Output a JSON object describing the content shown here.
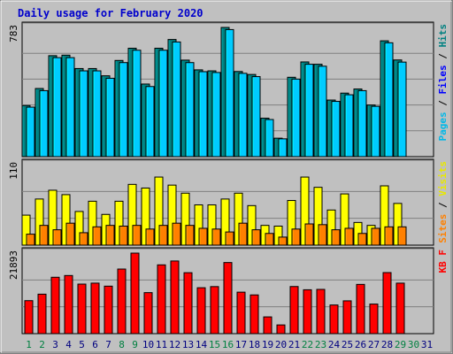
{
  "chart_data": {
    "type": "bar",
    "title": "Daily usage for February 2020",
    "legend_placement": "right",
    "x": {
      "labels": [
        "1",
        "2",
        "3",
        "4",
        "5",
        "6",
        "7",
        "8",
        "9",
        "10",
        "11",
        "12",
        "13",
        "14",
        "15",
        "16",
        "17",
        "18",
        "19",
        "20",
        "21",
        "22",
        "23",
        "24",
        "25",
        "26",
        "27",
        "28",
        "29",
        "30",
        "31"
      ],
      "weekend_days": [
        "1",
        "2",
        "8",
        "9",
        "15",
        "16",
        "22",
        "23",
        "29",
        "30"
      ],
      "weekend_color": "#008040",
      "weekday_color": "#000080"
    },
    "panels": [
      {
        "id": "pages-files-hits",
        "ymax_label": "783",
        "ymax": 783,
        "gridlines": 5,
        "legend": [
          {
            "text": "Pages",
            "color": "#00b8e8"
          },
          {
            "text": " / ",
            "color": "#000000"
          },
          {
            "text": "Files",
            "color": "#0000ff"
          },
          {
            "text": " / ",
            "color": "#000000"
          },
          {
            "text": "Hits",
            "color": "#008080"
          }
        ],
        "series": [
          {
            "name": "Hits",
            "color": "#008080",
            "values": [
              310,
              413,
              612,
              615,
              534,
              534,
              490,
              583,
              657,
              440,
              657,
              710,
              585,
              526,
              520,
              783,
              516,
              498,
              233,
              112,
              481,
              574,
              560,
              343,
              385,
              410,
              313,
              702,
              586,
              0,
              0
            ]
          },
          {
            "name": "Files",
            "color": "#00ccff",
            "values": [
              300,
              400,
              600,
              600,
              520,
              520,
              475,
              570,
              645,
              425,
              645,
              695,
              570,
              515,
              510,
              770,
              505,
              485,
              225,
              108,
              470,
              560,
              548,
              335,
              375,
              400,
              305,
              690,
              573,
              0,
              0
            ]
          }
        ]
      },
      {
        "id": "visits-sites",
        "ymax_label": "110",
        "ymax": 110,
        "gridlines": 3,
        "legend": [
          {
            "text": "Sites",
            "color": "#ff8000"
          },
          {
            "text": " / ",
            "color": "#000000"
          },
          {
            "text": "Visits",
            "color": "#e8e800"
          }
        ],
        "series": [
          {
            "name": "Visits",
            "color": "#ffff00",
            "values": [
              41,
              63,
              75,
              69,
              46,
              60,
              42,
              60,
              83,
              78,
              93,
              82,
              71,
              55,
              55,
              63,
              71,
              54,
              27,
              26,
              61,
              93,
              79,
              48,
              70,
              31,
              27,
              81,
              57,
              0,
              0
            ]
          },
          {
            "name": "Sites",
            "color": "#ff8000",
            "values": [
              15,
              27,
              21,
              30,
              17,
              25,
              27,
              26,
              27,
              22,
              27,
              30,
              27,
              23,
              22,
              18,
              30,
              21,
              16,
              11,
              22,
              29,
              28,
              21,
              23,
              16,
              23,
              25,
              25,
              0,
              0
            ]
          }
        ]
      },
      {
        "id": "kbytes",
        "ymax_label": "21893",
        "ymax": 21893,
        "gridlines": 3,
        "legend": [
          {
            "text": "KB F",
            "color": "#ff0000"
          }
        ],
        "series": [
          {
            "name": "KB F",
            "color": "#ff0000",
            "values": [
              8970,
              10730,
              15330,
              15800,
              13470,
              13730,
              12910,
              17560,
              21890,
              11150,
              18700,
              19750,
              16570,
              12480,
              12790,
              19330,
              11280,
              10530,
              4550,
              2370,
              12810,
              11930,
              12030,
              7790,
              8920,
              13390,
              8040,
              16600,
              13730,
              0,
              0
            ]
          }
        ]
      }
    ]
  }
}
